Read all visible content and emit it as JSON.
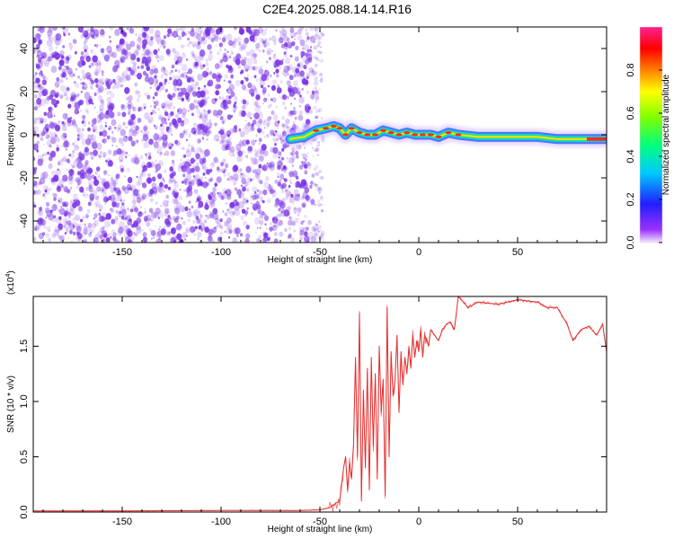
{
  "title": "C2E4.2025.088.14.14.R16",
  "colors": {
    "scatter": "#7a33e6",
    "signal_core": "#ff2a2a",
    "signal_mid": "#30e070",
    "signal_edge": "#3b6bff",
    "snr_line": "#e83030",
    "axis": "#000000"
  },
  "chart_data": [
    {
      "type": "heatmap",
      "name": "spectrogram",
      "title": "C2E4.2025.088.14.14.R16",
      "xlabel": "Height of straight line (km)",
      "ylabel": "Frequency (Hz)",
      "xlim": [
        -195,
        95
      ],
      "ylim": [
        -50,
        50
      ],
      "xticks": [
        -150,
        -100,
        -50,
        0,
        50
      ],
      "yticks": [
        -40,
        -20,
        0,
        20,
        40
      ],
      "noise_region_km": [
        -195,
        -53
      ],
      "signal_ridge": {
        "x": [
          -65,
          -58,
          -52,
          -47,
          -43,
          -40,
          -37,
          -34,
          -30,
          -26,
          -22,
          -18,
          -14,
          -10,
          -6,
          -2,
          2,
          6,
          10,
          15,
          20,
          30,
          40,
          50,
          60,
          70,
          80,
          90,
          95
        ],
        "y": [
          -2,
          -1,
          2,
          3,
          4,
          3,
          0,
          3,
          1,
          0,
          0,
          2,
          1,
          0,
          1,
          0,
          0,
          0,
          -1,
          1,
          0,
          -1,
          -1,
          -1,
          -1,
          -2,
          -2,
          -2,
          -2
        ]
      },
      "colorbar": {
        "label": "Normalized spectral amplitude",
        "range": [
          0,
          1
        ],
        "ticks": [
          "0.0",
          "0.2",
          "0.4",
          "0.6",
          "0.8"
        ],
        "tick_values": [
          0.0,
          0.2,
          0.4,
          0.6,
          0.8
        ]
      }
    },
    {
      "type": "line",
      "name": "snr",
      "xlabel": "Height of straight line (km)",
      "ylabel": "SNR (10 * v/v)",
      "multiplier": "(x10",
      "multiplier_exp": "4",
      "multiplier_close": ")",
      "xlim": [
        -195,
        95
      ],
      "ylim": [
        0,
        1.95
      ],
      "xticks": [
        -150,
        -100,
        -50,
        0,
        50
      ],
      "yticks": [
        0.0,
        0.5,
        1.0,
        1.5
      ],
      "ytick_labels": [
        "0.0",
        "0.5",
        "1.0",
        "1.5"
      ],
      "series": [
        {
          "name": "SNR",
          "x": [
            -195,
            -150,
            -100,
            -60,
            -50,
            -45,
            -42,
            -40,
            -38,
            -37,
            -36,
            -35,
            -34,
            -33,
            -32,
            -31,
            -30,
            -29,
            -28,
            -27,
            -26,
            -25,
            -24,
            -23,
            -22,
            -21,
            -20,
            -19,
            -18,
            -17,
            -16,
            -15,
            -14,
            -13,
            -12,
            -11,
            -10,
            -9,
            -8,
            -7,
            -6,
            -5,
            -4,
            -3,
            -2,
            -1,
            0,
            1,
            2,
            3,
            4,
            5,
            6,
            8,
            10,
            12,
            14,
            16,
            18,
            20,
            25,
            30,
            40,
            50,
            60,
            65,
            70,
            75,
            78,
            82,
            86,
            90,
            93,
            95
          ],
          "values": [
            0.01,
            0.01,
            0.015,
            0.015,
            0.02,
            0.04,
            0.08,
            0.1,
            0.4,
            0.5,
            0.2,
            0.45,
            0.3,
            0.6,
            1.4,
            0.5,
            1.8,
            0.1,
            1.1,
            0.4,
            1.3,
            0.2,
            1.4,
            0.6,
            1.25,
            0.3,
            1.5,
            0.9,
            1.2,
            0.15,
            1.85,
            0.5,
            1.45,
            1.05,
            1.2,
            1.6,
            0.9,
            1.45,
            1.15,
            1.4,
            1.25,
            1.5,
            1.3,
            1.6,
            1.4,
            1.55,
            1.45,
            1.65,
            1.4,
            1.6,
            1.55,
            1.5,
            1.65,
            1.6,
            1.55,
            1.65,
            1.7,
            1.72,
            1.65,
            1.95,
            1.85,
            1.9,
            1.88,
            1.92,
            1.9,
            1.85,
            1.85,
            1.7,
            1.55,
            1.65,
            1.68,
            1.6,
            1.7,
            1.45
          ]
        }
      ]
    }
  ]
}
